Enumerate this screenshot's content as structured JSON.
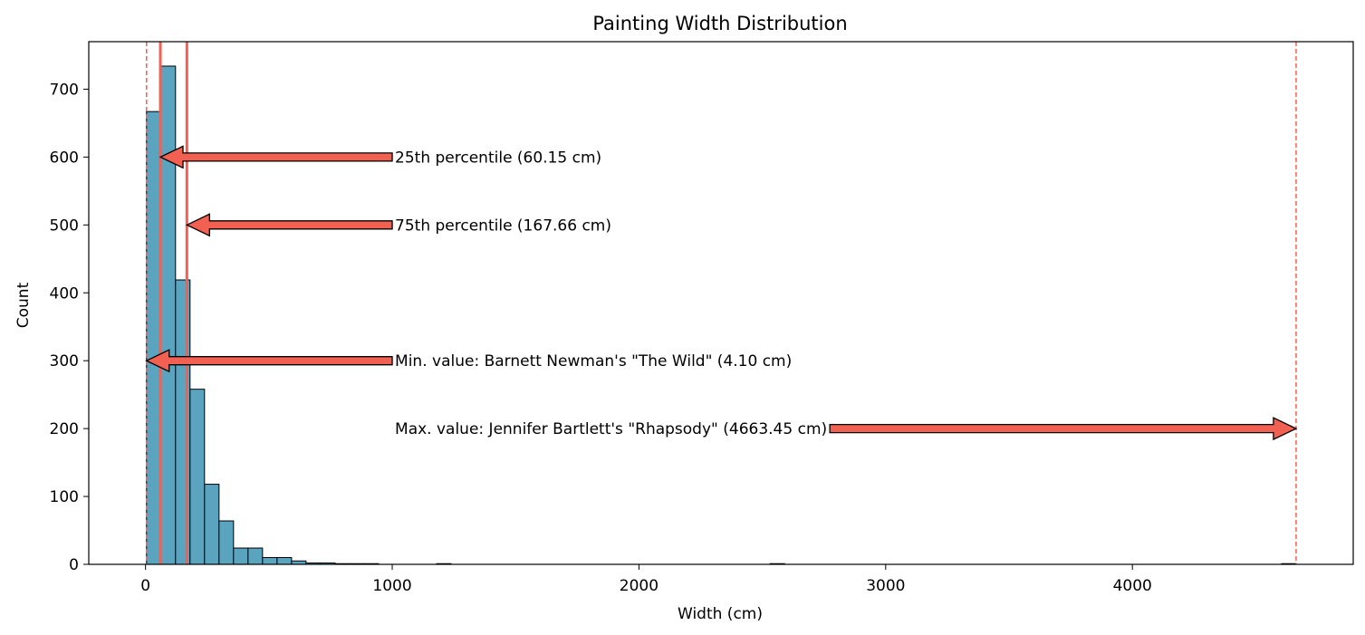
{
  "chart_data": {
    "type": "bar",
    "title": "Painting Width Distribution",
    "xlabel": "Width (cm)",
    "ylabel": "Count",
    "xlim": [
      -230,
      4895
    ],
    "ylim": [
      0,
      770
    ],
    "xticks": [
      0,
      1000,
      2000,
      3000,
      4000
    ],
    "yticks": [
      0,
      100,
      200,
      300,
      400,
      500,
      600,
      700
    ],
    "xtick_labels": [
      "0",
      "1000",
      "2000",
      "3000",
      "4000"
    ],
    "ytick_labels": [
      "0",
      "100",
      "200",
      "300",
      "400",
      "500",
      "600",
      "700"
    ],
    "grid": false,
    "bin_width": 58.78,
    "bins": [
      {
        "start": 4.1,
        "count": 667
      },
      {
        "start": 62.88,
        "count": 734
      },
      {
        "start": 121.66,
        "count": 419
      },
      {
        "start": 180.44,
        "count": 258
      },
      {
        "start": 239.22,
        "count": 118
      },
      {
        "start": 298.0,
        "count": 64
      },
      {
        "start": 356.78,
        "count": 24
      },
      {
        "start": 415.56,
        "count": 24
      },
      {
        "start": 474.34,
        "count": 10
      },
      {
        "start": 533.12,
        "count": 10
      },
      {
        "start": 591.9,
        "count": 5
      },
      {
        "start": 650.68,
        "count": 2
      },
      {
        "start": 709.46,
        "count": 2
      },
      {
        "start": 768.24,
        "count": 1
      },
      {
        "start": 827.02,
        "count": 1
      },
      {
        "start": 885.8,
        "count": 1
      },
      {
        "start": 1179.7,
        "count": 1
      },
      {
        "start": 2531.64,
        "count": 1
      },
      {
        "start": 4604.67,
        "count": 1
      }
    ],
    "bar_color": "#5ba4c0",
    "line_color": "#f26052",
    "solid_lines": [
      60.15,
      167.66
    ],
    "dashed_lines": [
      4.1,
      4663.45
    ],
    "annotations": [
      {
        "text": "25th percentile (60.15 cm)",
        "text_x": 1000,
        "text_y": 600,
        "arrow_to_x": 60.15,
        "arrow_to_y": 600
      },
      {
        "text": "75th percentile (167.66 cm)",
        "text_x": 1000,
        "text_y": 500,
        "arrow_to_x": 167.66,
        "arrow_to_y": 500
      },
      {
        "text": "Min. value: Barnett Newman's \"The Wild\" (4.10 cm)",
        "text_x": 1000,
        "text_y": 300,
        "arrow_to_x": 4.1,
        "arrow_to_y": 300
      },
      {
        "text": "Max. value: Jennifer Bartlett's \"Rhapsody\" (4663.45 cm)",
        "text_x": 1000,
        "text_y": 200,
        "arrow_to_x": 4663.45,
        "arrow_to_y": 200
      }
    ]
  }
}
